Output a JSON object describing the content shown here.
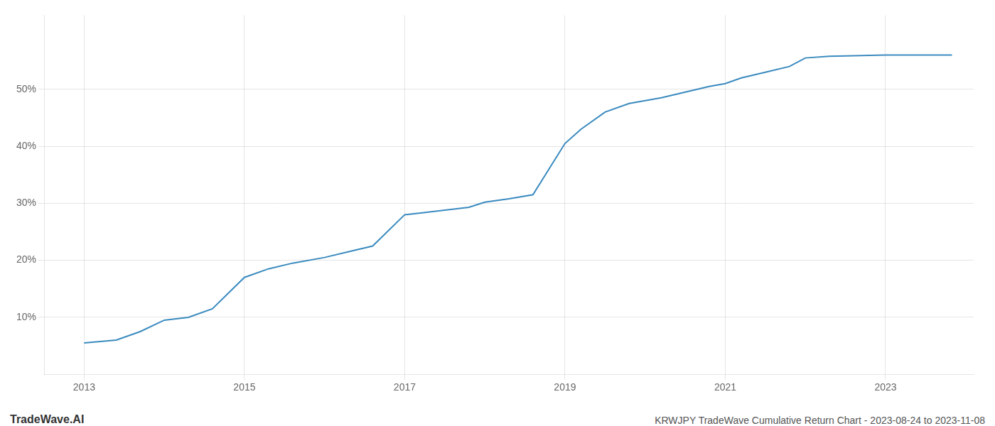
{
  "chart_data": {
    "type": "line",
    "title": "KRWJPY TradeWave Cumulative Return Chart - 2023-08-24 to 2023-11-08",
    "annotations": [
      "TradeWave.AI"
    ],
    "x": [
      2013.0,
      2013.4,
      2013.7,
      2014.0,
      2014.3,
      2014.6,
      2015.0,
      2015.3,
      2015.6,
      2016.0,
      2016.3,
      2016.6,
      2017.0,
      2017.2,
      2017.5,
      2017.8,
      2018.0,
      2018.3,
      2018.6,
      2019.0,
      2019.2,
      2019.5,
      2019.8,
      2020.0,
      2020.2,
      2020.5,
      2020.8,
      2021.0,
      2021.2,
      2021.5,
      2021.8,
      2022.0,
      2022.3,
      2022.6,
      2023.0,
      2023.5,
      2023.83
    ],
    "values": [
      5.5,
      6.0,
      7.5,
      9.5,
      10.0,
      11.5,
      17.0,
      18.5,
      19.5,
      20.5,
      21.5,
      22.5,
      28.0,
      28.3,
      28.8,
      29.3,
      30.2,
      30.8,
      31.5,
      40.5,
      43.0,
      46.0,
      47.5,
      48.0,
      48.5,
      49.5,
      50.5,
      51.0,
      52.0,
      53.0,
      54.0,
      55.5,
      55.8,
      55.9,
      56.0,
      56.0,
      56.0
    ],
    "color": "#3a8abf",
    "xlim": [
      2012.5,
      2024.1
    ],
    "ylim": [
      0,
      63
    ],
    "xticks": [
      2013,
      2015,
      2017,
      2019,
      2021,
      2023
    ],
    "yticks": [
      {
        "value": 10,
        "label": "10%"
      },
      {
        "value": 20,
        "label": "20%"
      },
      {
        "value": 30,
        "label": "30%"
      },
      {
        "value": 40,
        "label": "40%"
      },
      {
        "value": 50,
        "label": "50%"
      }
    ],
    "grid": true
  }
}
